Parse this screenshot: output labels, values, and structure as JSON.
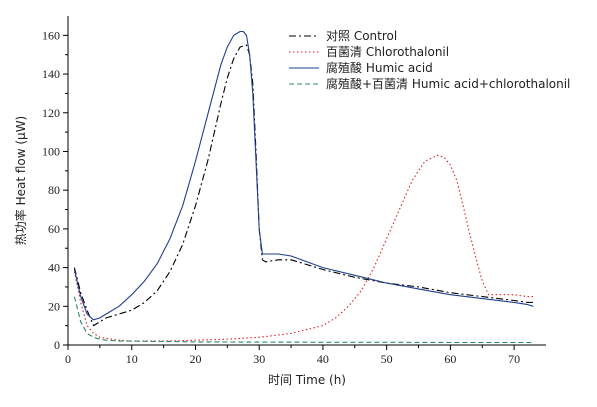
{
  "chart_data": {
    "type": "line",
    "title": "",
    "xlabel": "时间 Time (h)",
    "ylabel": "热功率 Heat flow (μW)",
    "xlim": [
      0,
      75
    ],
    "ylim": [
      0,
      170
    ],
    "xticks": [
      0,
      10,
      20,
      30,
      40,
      50,
      60,
      70
    ],
    "yticks": [
      0,
      20,
      40,
      60,
      80,
      100,
      120,
      140,
      160
    ],
    "grid": false,
    "legend_position": "top-right",
    "series": [
      {
        "name": "对照 Control",
        "color": "#000000",
        "dash": "dashdot",
        "x": [
          1,
          2,
          3,
          4,
          5,
          6,
          8,
          10,
          12,
          14,
          16,
          18,
          20,
          22,
          24,
          25,
          26,
          27,
          28,
          28.5,
          29,
          29.5,
          30,
          30.5,
          31,
          33,
          35,
          40,
          45,
          50,
          55,
          60,
          65,
          70,
          72,
          73
        ],
        "y": [
          40,
          27,
          18,
          10,
          12,
          14,
          16,
          18,
          22,
          28,
          38,
          52,
          72,
          96,
          125,
          138,
          148,
          154,
          155,
          150,
          135,
          100,
          60,
          44,
          43,
          44,
          44,
          39,
          35,
          32,
          30,
          27,
          25,
          23,
          22,
          22
        ]
      },
      {
        "name": "百菌清 Chlorothalonil",
        "color": "#e01e1e",
        "dash": "dot",
        "x": [
          1,
          2,
          3,
          4,
          5,
          8,
          10,
          15,
          20,
          25,
          30,
          35,
          40,
          42,
          44,
          46,
          48,
          50,
          52,
          54,
          56,
          58,
          59,
          60,
          61,
          62,
          63,
          64,
          65,
          66,
          68,
          70,
          72,
          73
        ],
        "y": [
          38,
          22,
          10,
          6,
          4,
          2.5,
          2,
          2,
          2.5,
          3,
          4,
          6,
          10,
          14,
          20,
          28,
          40,
          55,
          70,
          85,
          95,
          98,
          97,
          93,
          85,
          72,
          58,
          45,
          33,
          26,
          26,
          26,
          25,
          25
        ]
      },
      {
        "name": "腐殖酸 Humic acid",
        "color": "#1f3f8f",
        "dash": "solid",
        "x": [
          1,
          2,
          3,
          4,
          5,
          6,
          8,
          10,
          12,
          14,
          16,
          18,
          20,
          22,
          24,
          25,
          26,
          27,
          27.5,
          28,
          28.5,
          29,
          29.5,
          30,
          30.5,
          31,
          33,
          35,
          40,
          45,
          50,
          55,
          60,
          65,
          70,
          72,
          73
        ],
        "y": [
          39,
          25,
          16,
          13,
          14,
          16,
          20,
          26,
          33,
          42,
          55,
          72,
          95,
          120,
          145,
          154,
          160,
          162,
          162,
          160,
          150,
          130,
          95,
          60,
          47,
          47,
          47,
          46,
          40,
          36,
          32,
          29,
          26,
          24,
          22,
          21,
          20
        ]
      },
      {
        "name": "腐殖酸+百菌清 Humic acid+chlorothalonil",
        "color": "#2a8a6a",
        "dash": "dash",
        "x": [
          1,
          2,
          3,
          4,
          5,
          6,
          8,
          10,
          15,
          20,
          30,
          40,
          50,
          60,
          70,
          73
        ],
        "y": [
          25,
          12,
          6,
          4,
          3,
          2.5,
          2,
          2,
          1.8,
          1.6,
          1.5,
          1.4,
          1.4,
          1.3,
          1.3,
          1.3
        ]
      }
    ]
  }
}
